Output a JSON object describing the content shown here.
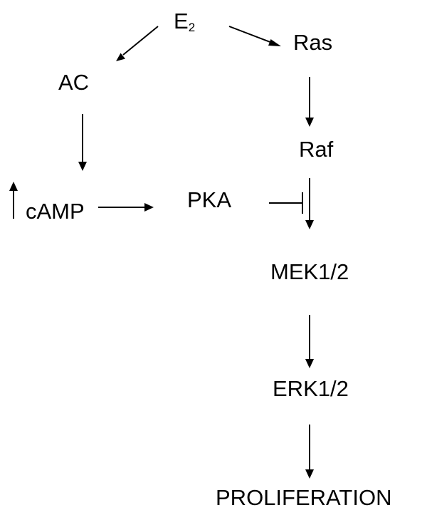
{
  "nodes": {
    "e2": {
      "main": "E",
      "sub": "2"
    },
    "ras": "Ras",
    "ac": "AC",
    "raf": "Raf",
    "camp": "cAMP",
    "pka": "PKA",
    "mek": "MEK1/2",
    "erk": "ERK1/2",
    "proliferation": "PROLIFERATION"
  },
  "edges": [
    {
      "from": "e2",
      "to": "ac",
      "type": "activates"
    },
    {
      "from": "e2",
      "to": "ras",
      "type": "activates"
    },
    {
      "from": "ac",
      "to": "camp",
      "type": "activates"
    },
    {
      "from": "ras",
      "to": "raf",
      "type": "activates"
    },
    {
      "from": "camp",
      "to": "pka",
      "type": "activates"
    },
    {
      "from": "raf",
      "to": "mek",
      "type": "activates"
    },
    {
      "from": "pka",
      "to": "raf-mek-step",
      "type": "inhibits"
    },
    {
      "from": "mek",
      "to": "erk",
      "type": "activates"
    },
    {
      "from": "erk",
      "to": "proliferation",
      "type": "activates"
    }
  ],
  "indicators": {
    "camp": "increase-arrow-icon"
  },
  "colors": {
    "ink": "#000000",
    "background": "#ffffff"
  }
}
